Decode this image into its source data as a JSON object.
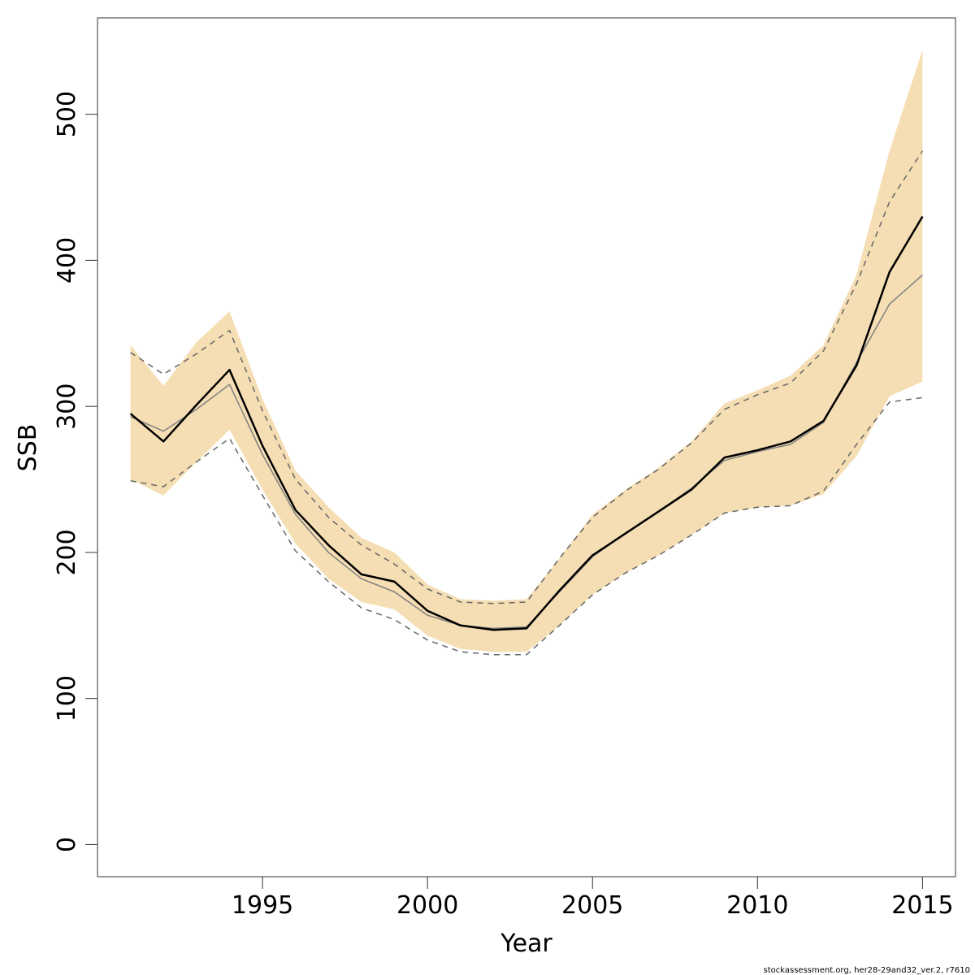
{
  "chart_data": {
    "type": "line",
    "title": "",
    "xlabel": "Year",
    "ylabel": "SSB",
    "xlim": [
      1990,
      2016
    ],
    "ylim": [
      -22,
      566
    ],
    "x_ticks": [
      1995,
      2000,
      2005,
      2010,
      2015
    ],
    "y_ticks": [
      0,
      100,
      200,
      300,
      400,
      500
    ],
    "x": [
      1991,
      1992,
      1993,
      1994,
      1995,
      1996,
      1997,
      1998,
      1999,
      2000,
      2001,
      2002,
      2003,
      2004,
      2005,
      2006,
      2007,
      2008,
      2009,
      2010,
      2011,
      2012,
      2013,
      2014,
      2015
    ],
    "band": {
      "color": "#f5deb3",
      "lower": [
        250,
        239,
        262,
        284,
        243,
        206,
        182,
        166,
        161,
        143,
        134,
        132,
        132,
        150,
        171,
        186,
        198,
        212,
        227,
        231,
        232,
        240,
        266,
        307,
        317
      ],
      "upper": [
        342,
        314,
        344,
        365,
        305,
        256,
        231,
        210,
        200,
        178,
        168,
        167,
        168,
        196,
        226,
        243,
        258,
        276,
        302,
        311,
        321,
        342,
        390,
        475,
        544
      ]
    },
    "series": [
      {
        "name": "",
        "style": "solid-thick",
        "color": "#000000",
        "values": [
          295,
          276,
          301,
          325,
          273,
          229,
          205,
          185,
          180,
          160,
          150,
          147,
          148,
          174,
          198,
          213,
          228,
          243,
          265,
          270,
          276,
          290,
          328,
          392,
          430
        ]
      },
      {
        "name": "",
        "style": "solid-thin",
        "color": "#7f7f7f",
        "values": [
          293,
          283,
          298,
          315,
          267,
          226,
          200,
          182,
          173,
          157,
          150,
          148,
          149,
          173,
          197,
          213,
          228,
          244,
          263,
          269,
          274,
          289,
          330,
          370,
          390
        ]
      },
      {
        "name": "",
        "style": "dashed-upper",
        "color": "#666666",
        "values": [
          337,
          322,
          336,
          352,
          297,
          250,
          224,
          205,
          192,
          175,
          166,
          165,
          166,
          196,
          224,
          242,
          257,
          275,
          298,
          308,
          316,
          338,
          384,
          440,
          475
        ]
      },
      {
        "name": "",
        "style": "dashed-lower",
        "color": "#666666",
        "values": [
          249,
          245,
          262,
          278,
          239,
          201,
          180,
          162,
          154,
          140,
          132,
          130,
          130,
          150,
          171,
          186,
          198,
          212,
          227,
          231,
          232,
          242,
          274,
          303,
          306
        ]
      }
    ]
  },
  "footer": "stockassessment.org, her28-29and32_ver.2, r7610"
}
